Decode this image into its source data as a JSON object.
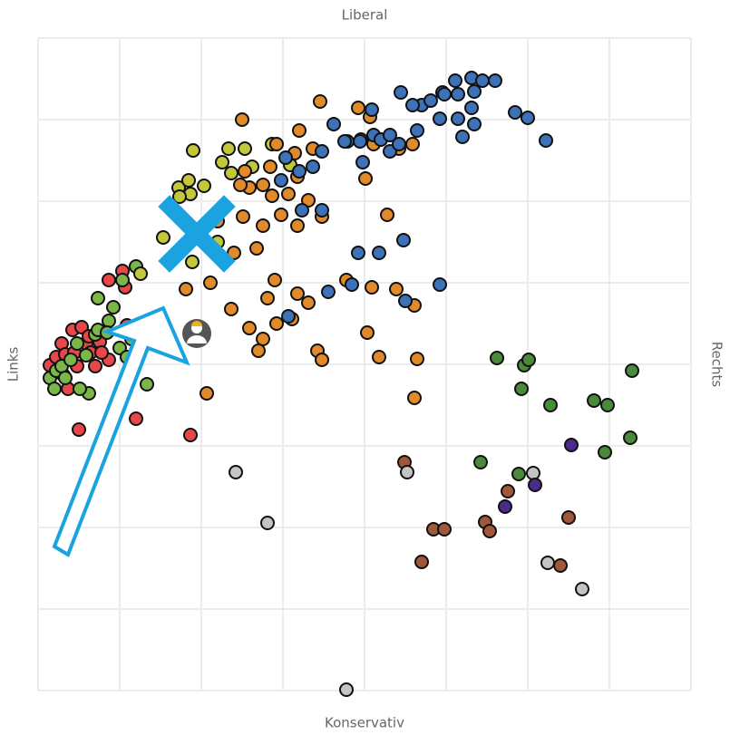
{
  "chart_data": {
    "type": "scatter",
    "labels": {
      "top": "Liberal",
      "bottom": "Konservativ",
      "left": "Links",
      "right": "Rechts"
    },
    "xlim": [
      -360,
      360
    ],
    "ylim": [
      -360,
      360
    ],
    "xticks": [
      -360,
      -270,
      -180,
      -90,
      0,
      90,
      180,
      270,
      360
    ],
    "yticks": [
      -360,
      -270,
      -180,
      -90,
      0,
      90,
      180,
      270,
      360
    ],
    "grid": true,
    "series": [
      {
        "color": "#e8474a",
        "x": [
          -347,
          -340,
          -334,
          -330,
          -322,
          -312,
          -307,
          -317,
          -327,
          -302,
          -297,
          -292,
          -282,
          -282,
          -264,
          -262,
          -252,
          -242,
          -315,
          -192,
          -267,
          -332,
          -320,
          -304,
          -290
        ],
        "values": [
          -1,
          8,
          23,
          11,
          38,
          41,
          23,
          -2,
          -27,
          13,
          -2,
          25,
          5,
          93,
          85,
          43,
          -60,
          28,
          -72,
          -78,
          103,
          -12,
          13,
          31,
          13
        ]
      },
      {
        "color": "#7ab648",
        "x": [
          -347,
          -342,
          -340,
          -334,
          -324,
          -317,
          -307,
          -297,
          -294,
          -282,
          -277,
          -270,
          -262,
          -257,
          -252,
          -237,
          -240,
          -304,
          -294,
          -284,
          -267,
          -314,
          -330
        ],
        "values": [
          -15,
          -27,
          -7,
          -2,
          5,
          23,
          10,
          33,
          73,
          48,
          63,
          18,
          8,
          28,
          108,
          43,
          -22,
          -32,
          38,
          35,
          93,
          -27,
          -15
        ]
      },
      {
        "color": "#c3c73a",
        "x": [
          -189,
          -150,
          -132,
          -157,
          -124,
          -205,
          -192,
          -194,
          -177,
          -204,
          -147,
          -222,
          -247,
          -190,
          -102,
          -82,
          -162
        ],
        "values": [
          236,
          238,
          238,
          223,
          218,
          195,
          188,
          203,
          197,
          185,
          211,
          140,
          100,
          113,
          243,
          220,
          135
        ]
      },
      {
        "color": "#e08a2a",
        "x": [
          -135,
          -49,
          -7,
          6,
          -72,
          -97,
          -77,
          -57,
          -104,
          -127,
          -112,
          -102,
          -84,
          -74,
          -92,
          -62,
          -74,
          -47,
          -112,
          -134,
          -119,
          -144,
          -137,
          -162,
          -197,
          -170,
          -147,
          -107,
          -99,
          -74,
          -62,
          -80,
          -97,
          -127,
          -112,
          -117,
          -52,
          -47,
          3,
          16,
          -20,
          8,
          35,
          55,
          58,
          55,
          1,
          25,
          10,
          53,
          -4,
          -174,
          38,
          -132
        ],
        "values": [
          270,
          290,
          283,
          273,
          258,
          243,
          233,
          238,
          218,
          195,
          198,
          186,
          188,
          207,
          165,
          181,
          153,
          163,
          153,
          163,
          128,
          123,
          198,
          158,
          83,
          90,
          61,
          73,
          93,
          78,
          68,
          50,
          45,
          40,
          28,
          15,
          15,
          5,
          35,
          8,
          93,
          85,
          83,
          65,
          6,
          -37,
          205,
          165,
          243,
          243,
          248,
          -32,
          238,
          213
        ]
      },
      {
        "color": "#3d72b8",
        "x": [
          -34,
          -19,
          -5,
          10,
          -2,
          18,
          28,
          38,
          58,
          40,
          63,
          73,
          86,
          100,
          118,
          130,
          144,
          121,
          103,
          88,
          53,
          83,
          103,
          118,
          108,
          121,
          166,
          180,
          200,
          -47,
          -57,
          -72,
          -92,
          -87,
          -69,
          -47,
          -7,
          16,
          43,
          83,
          45,
          8,
          -40,
          -14,
          -84,
          -22,
          28
        ],
        "values": [
          265,
          246,
          246,
          253,
          223,
          248,
          235,
          243,
          258,
          300,
          286,
          291,
          300,
          313,
          316,
          313,
          313,
          301,
          298,
          298,
          286,
          271,
          271,
          283,
          251,
          265,
          278,
          272,
          247,
          235,
          218,
          213,
          203,
          228,
          170,
          170,
          123,
          123,
          137,
          88,
          70,
          281,
          80,
          88,
          53,
          246,
          253
        ]
      },
      {
        "color": "#4a8a3a",
        "x": [
          146,
          176,
          181,
          173,
          205,
          253,
          268,
          295,
          293,
          265,
          128,
          170
        ],
        "values": [
          7,
          -1,
          5,
          -27,
          -45,
          -40,
          -45,
          -7,
          -81,
          -97,
          -108,
          -121
        ]
      },
      {
        "color": "#a0583a",
        "x": [
          44,
          158,
          133,
          138,
          76,
          88,
          63,
          225,
          216
        ],
        "values": [
          -108,
          -140,
          -174,
          -184,
          -182,
          -182,
          -218,
          -169,
          -222
        ]
      },
      {
        "color": "#c4c4c4",
        "x": [
          -142,
          -107,
          47,
          186,
          202,
          240,
          -20
        ],
        "values": [
          -119,
          -175,
          -119,
          -120,
          -219,
          -248,
          -359
        ]
      },
      {
        "color": "#4b2b8a",
        "x": [
          228,
          188,
          155
        ],
        "values": [
          -89,
          -133,
          -157
        ]
      }
    ]
  }
}
